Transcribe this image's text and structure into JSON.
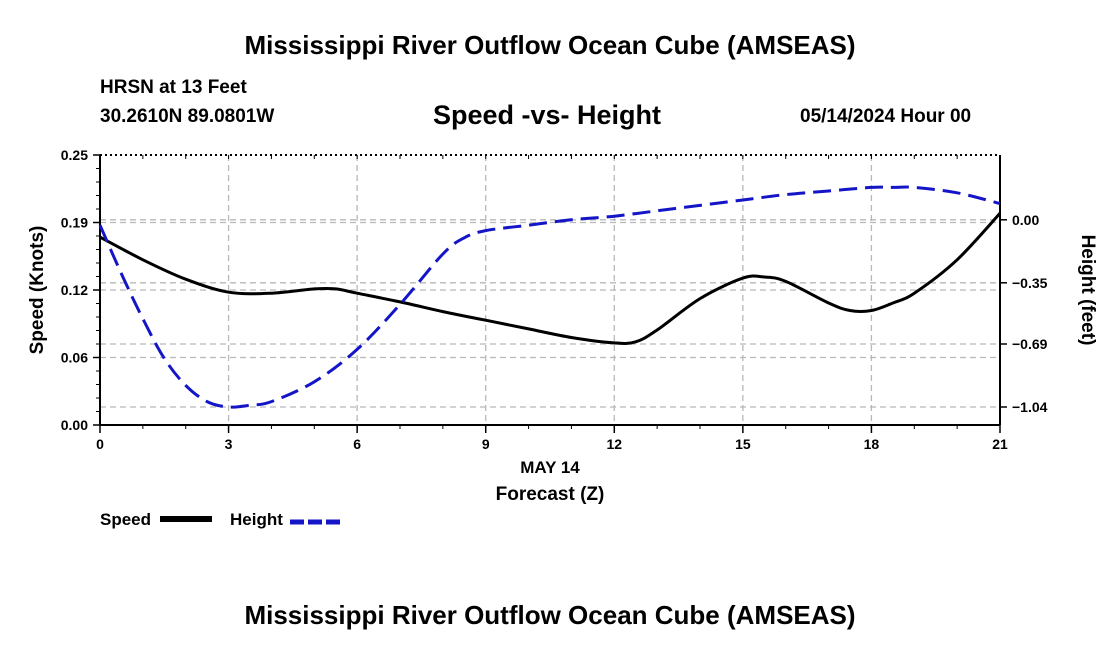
{
  "header": {
    "title": "Mississippi River Outflow Ocean Cube (AMSEAS)",
    "station": "HRSN at 13 Feet",
    "coords": "30.2610N  89.0801W",
    "subtitle": "Speed -vs- Height",
    "date": "05/14/2024 Hour 00"
  },
  "footer": {
    "title": "Mississippi River Outflow Ocean Cube (AMSEAS)"
  },
  "legend": {
    "speed_label": "Speed",
    "height_label": "Height"
  },
  "colors": {
    "speed": "#000000",
    "height": "#1515c8",
    "grid": "#b8b8b8"
  },
  "chart_data": {
    "type": "line",
    "title": "Speed -vs- Height",
    "xlabel_date": "MAY 14",
    "xlabel": "Forecast (Z)",
    "ylabel_left": "Speed (Knots)",
    "ylabel_right": "Height (feet)",
    "xlim": [
      0,
      21
    ],
    "x_ticks": [
      0,
      3,
      6,
      9,
      12,
      15,
      18,
      21
    ],
    "x_tick_labels": [
      "0",
      "3",
      "6",
      "9",
      "12",
      "15",
      "18",
      "21"
    ],
    "ylim_left": [
      0,
      0.25
    ],
    "y_left_ticks": [
      0.0,
      0.0625,
      0.125,
      0.1875,
      0.25
    ],
    "y_left_tick_labels": [
      "0.00",
      "0.06",
      "0.12",
      "0.19",
      "0.25"
    ],
    "ylim_right": [
      -1.14,
      0.36
    ],
    "y_right_ticks": [
      -1.04,
      -0.69,
      -0.35,
      0.0
    ],
    "y_right_tick_labels": [
      "−1.04",
      "−0.69",
      "−0.35",
      "0.00"
    ],
    "grid": true,
    "series": [
      {
        "name": "Speed",
        "axis": "left",
        "style": "solid",
        "x": [
          0,
          1,
          2,
          3,
          4,
          5,
          5.5,
          6,
          7,
          8,
          9,
          10,
          11,
          12,
          12.5,
          13,
          14,
          15,
          15.5,
          16,
          17,
          17.5,
          18,
          18.5,
          19,
          20,
          21
        ],
        "values": [
          0.174,
          0.153,
          0.135,
          0.123,
          0.122,
          0.126,
          0.126,
          0.122,
          0.114,
          0.105,
          0.097,
          0.089,
          0.081,
          0.076,
          0.077,
          0.088,
          0.117,
          0.136,
          0.137,
          0.133,
          0.113,
          0.106,
          0.106,
          0.113,
          0.122,
          0.153,
          0.196
        ]
      },
      {
        "name": "Height",
        "axis": "right",
        "style": "dashed",
        "x": [
          0,
          0.5,
          1,
          1.5,
          2,
          2.5,
          3,
          3.5,
          4,
          5,
          6,
          7,
          8,
          8.5,
          9,
          10,
          11,
          12,
          13,
          14,
          15,
          16,
          17,
          18,
          18.5,
          19,
          20,
          21
        ],
        "values": [
          -0.03,
          -0.3,
          -0.55,
          -0.77,
          -0.92,
          -1.01,
          -1.04,
          -1.03,
          -1.01,
          -0.9,
          -0.72,
          -0.47,
          -0.19,
          -0.1,
          -0.06,
          -0.03,
          0.0,
          0.02,
          0.05,
          0.08,
          0.11,
          0.14,
          0.16,
          0.18,
          0.18,
          0.18,
          0.15,
          0.09
        ]
      }
    ]
  }
}
